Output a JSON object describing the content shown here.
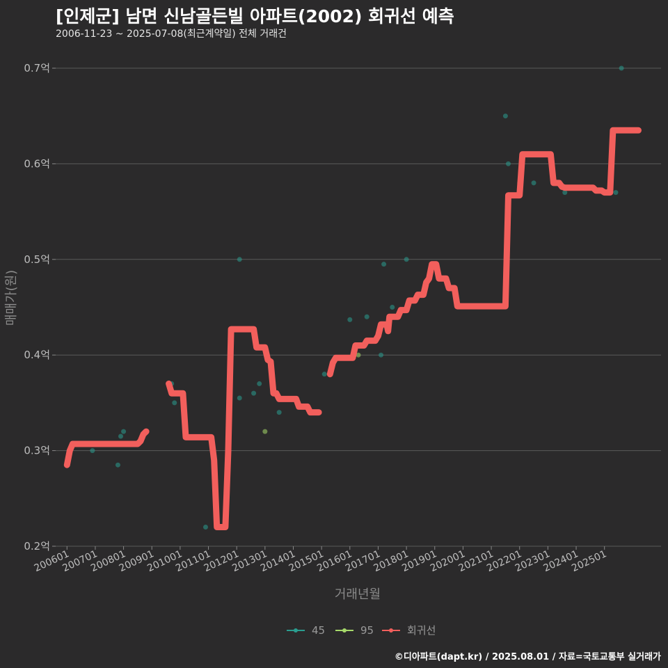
{
  "header": {
    "title": "[인제군] 남면 신남골든빌 아파트(2002) 회귀선 예측",
    "subtitle": "2006-11-23 ~ 2025-07-08(최근계약일) 전체 거래건"
  },
  "footer": {
    "credit": "©디아파트(dapt.kr) / 2025.08.01 / 자료=국토교통부 실거래가"
  },
  "colors": {
    "background": "#2b2a2b",
    "grid": "#5a5a5a",
    "series_45": "#2a9d8f",
    "series_95": "#a6d96a",
    "regression": "#f25f5c"
  },
  "chart_data": {
    "type": "line",
    "xlabel": "거래년월",
    "ylabel": "매매가(원)",
    "xlim": [
      2005.6,
      2027.0
    ],
    "ylim": [
      0.2,
      0.7
    ],
    "y_ticks": [
      {
        "value": 0.2,
        "label": "0.2억"
      },
      {
        "value": 0.3,
        "label": "0.3억"
      },
      {
        "value": 0.4,
        "label": "0.4억"
      },
      {
        "value": 0.5,
        "label": "0.5억"
      },
      {
        "value": 0.6,
        "label": "0.6억"
      },
      {
        "value": 0.7,
        "label": "0.7억"
      }
    ],
    "x_ticks": [
      {
        "value": 2006,
        "label": "200601"
      },
      {
        "value": 2007,
        "label": "200701"
      },
      {
        "value": 2008,
        "label": "200801"
      },
      {
        "value": 2009,
        "label": "200901"
      },
      {
        "value": 2010,
        "label": "201001"
      },
      {
        "value": 2011,
        "label": "201101"
      },
      {
        "value": 2012,
        "label": "201201"
      },
      {
        "value": 2013,
        "label": "201301"
      },
      {
        "value": 2014,
        "label": "201401"
      },
      {
        "value": 2015,
        "label": "201501"
      },
      {
        "value": 2016,
        "label": "201601"
      },
      {
        "value": 2017,
        "label": "201701"
      },
      {
        "value": 2018,
        "label": "201801"
      },
      {
        "value": 2019,
        "label": "201901"
      },
      {
        "value": 2020,
        "label": "202001"
      },
      {
        "value": 2021,
        "label": "202101"
      },
      {
        "value": 2022,
        "label": "202201"
      },
      {
        "value": 2023,
        "label": "202301"
      },
      {
        "value": 2024,
        "label": "202401"
      },
      {
        "value": 2025,
        "label": "202501"
      }
    ],
    "legend": [
      {
        "name": "45",
        "color": "#2a9d8f"
      },
      {
        "name": "95",
        "color": "#a6d96a"
      },
      {
        "name": "회귀선",
        "color": "#f25f5c"
      }
    ],
    "series": [
      {
        "name": "45",
        "kind": "scatter",
        "points": [
          [
            2006.9,
            0.3
          ],
          [
            2007.8,
            0.285
          ],
          [
            2007.9,
            0.315
          ],
          [
            2008.0,
            0.32
          ],
          [
            2009.7,
            0.37
          ],
          [
            2009.8,
            0.35
          ],
          [
            2010.0,
            0.36
          ],
          [
            2010.9,
            0.22
          ],
          [
            2012.1,
            0.5
          ],
          [
            2012.1,
            0.355
          ],
          [
            2012.6,
            0.36
          ],
          [
            2012.8,
            0.37
          ],
          [
            2013.5,
            0.34
          ],
          [
            2015.1,
            0.38
          ],
          [
            2016.0,
            0.437
          ],
          [
            2016.6,
            0.44
          ],
          [
            2017.1,
            0.4
          ],
          [
            2017.2,
            0.495
          ],
          [
            2017.5,
            0.45
          ],
          [
            2018.0,
            0.5
          ],
          [
            2021.5,
            0.65
          ],
          [
            2021.6,
            0.6
          ],
          [
            2022.0,
            0.58
          ],
          [
            2022.5,
            0.58
          ],
          [
            2023.4,
            0.58
          ],
          [
            2023.6,
            0.57
          ],
          [
            2025.4,
            0.57
          ],
          [
            2025.6,
            0.7
          ]
        ]
      },
      {
        "name": "95",
        "kind": "scatter",
        "points": [
          [
            2013.0,
            0.32
          ],
          [
            2016.3,
            0.4
          ]
        ]
      },
      {
        "name": "회귀선",
        "kind": "line",
        "segments": [
          [
            [
              2006.0,
              0.285
            ],
            [
              2006.1,
              0.3
            ],
            [
              2006.2,
              0.307
            ],
            [
              2007.5,
              0.307
            ],
            [
              2008.5,
              0.307
            ],
            [
              2008.6,
              0.31
            ],
            [
              2008.7,
              0.317
            ],
            [
              2008.8,
              0.32
            ]
          ],
          [
            [
              2009.6,
              0.37
            ],
            [
              2009.7,
              0.36
            ],
            [
              2010.1,
              0.36
            ],
            [
              2010.2,
              0.314
            ],
            [
              2010.9,
              0.314
            ],
            [
              2011.1,
              0.314
            ],
            [
              2011.2,
              0.29
            ],
            [
              2011.3,
              0.22
            ],
            [
              2011.6,
              0.22
            ],
            [
              2011.7,
              0.3
            ],
            [
              2011.8,
              0.427
            ],
            [
              2012.3,
              0.427
            ],
            [
              2012.6,
              0.427
            ],
            [
              2012.7,
              0.408
            ],
            [
              2013.0,
              0.408
            ],
            [
              2013.1,
              0.395
            ],
            [
              2013.2,
              0.393
            ],
            [
              2013.3,
              0.36
            ],
            [
              2013.4,
              0.36
            ],
            [
              2013.5,
              0.354
            ],
            [
              2014.1,
              0.354
            ],
            [
              2014.2,
              0.346
            ],
            [
              2014.5,
              0.346
            ],
            [
              2014.6,
              0.34
            ],
            [
              2014.9,
              0.34
            ]
          ],
          [
            [
              2015.3,
              0.38
            ],
            [
              2015.4,
              0.392
            ],
            [
              2015.5,
              0.397
            ],
            [
              2016.0,
              0.397
            ],
            [
              2016.1,
              0.397
            ],
            [
              2016.2,
              0.41
            ],
            [
              2016.5,
              0.41
            ],
            [
              2016.6,
              0.415
            ],
            [
              2016.9,
              0.415
            ],
            [
              2017.0,
              0.42
            ],
            [
              2017.1,
              0.432
            ],
            [
              2017.3,
              0.432
            ],
            [
              2017.35,
              0.425
            ],
            [
              2017.4,
              0.44
            ],
            [
              2017.7,
              0.44
            ],
            [
              2017.8,
              0.447
            ],
            [
              2018.0,
              0.447
            ],
            [
              2018.1,
              0.457
            ],
            [
              2018.3,
              0.457
            ],
            [
              2018.4,
              0.463
            ],
            [
              2018.6,
              0.463
            ],
            [
              2018.7,
              0.476
            ],
            [
              2018.8,
              0.48
            ],
            [
              2018.9,
              0.495
            ],
            [
              2019.05,
              0.495
            ],
            [
              2019.15,
              0.48
            ],
            [
              2019.4,
              0.48
            ],
            [
              2019.5,
              0.47
            ],
            [
              2019.7,
              0.47
            ],
            [
              2019.8,
              0.451
            ],
            [
              2021.5,
              0.451
            ],
            [
              2021.6,
              0.567
            ],
            [
              2022.0,
              0.567
            ],
            [
              2022.1,
              0.61
            ],
            [
              2023.1,
              0.61
            ],
            [
              2023.2,
              0.58
            ],
            [
              2023.4,
              0.58
            ],
            [
              2023.5,
              0.576
            ],
            [
              2023.6,
              0.575
            ],
            [
              2024.6,
              0.575
            ],
            [
              2024.7,
              0.572
            ],
            [
              2024.9,
              0.572
            ],
            [
              2025.0,
              0.57
            ],
            [
              2025.2,
              0.57
            ],
            [
              2025.3,
              0.635
            ],
            [
              2026.2,
              0.635
            ]
          ]
        ]
      }
    ]
  }
}
